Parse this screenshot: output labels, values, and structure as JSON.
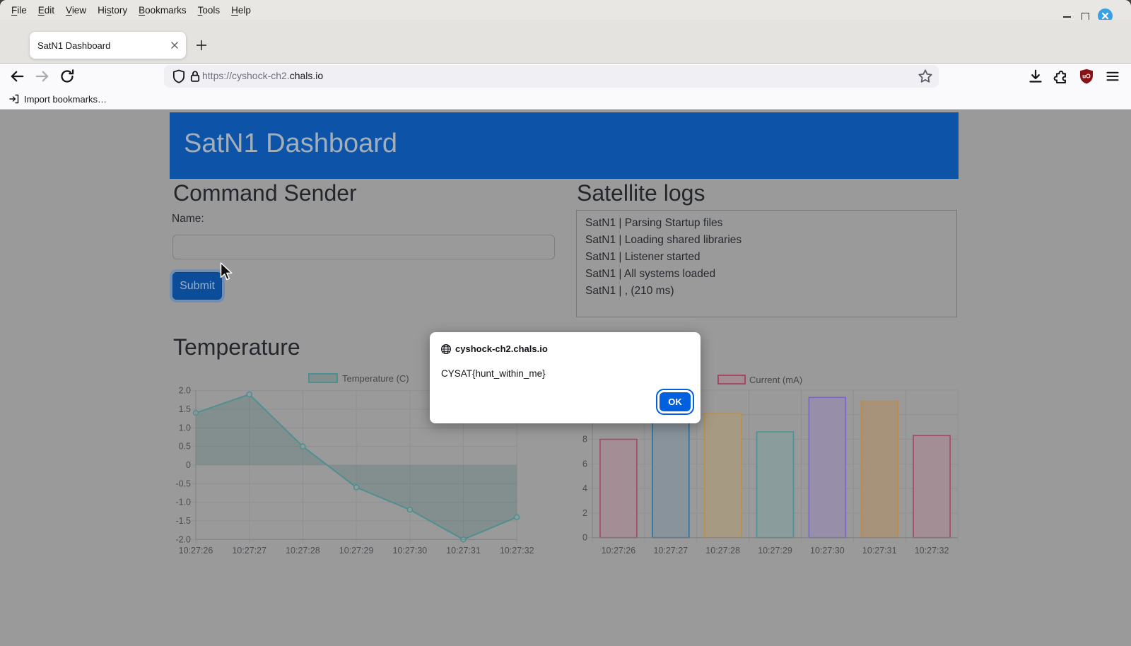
{
  "window": {
    "menu_items": [
      {
        "label": "File",
        "accesskey_index": 0
      },
      {
        "label": "Edit",
        "accesskey_index": 0
      },
      {
        "label": "View",
        "accesskey_index": 0
      },
      {
        "label": "History",
        "accesskey_index": 2
      },
      {
        "label": "Bookmarks",
        "accesskey_index": 0
      },
      {
        "label": "Tools",
        "accesskey_index": 0
      },
      {
        "label": "Help",
        "accesskey_index": 0
      }
    ]
  },
  "tabs": {
    "active_tab_title": "SatN1 Dashboard"
  },
  "navigation": {
    "url_prefix": "https://cyshock-ch2.",
    "url_domain": "chals.io"
  },
  "bookmarks_bar": {
    "import_label": "Import bookmarks…"
  },
  "page": {
    "header_title": "SatN1 Dashboard",
    "command_sender": {
      "heading": "Command Sender",
      "name_label": "Name:",
      "input_value": "",
      "submit_label": "Submit"
    },
    "satellite_logs": {
      "heading": "Satellite logs",
      "lines": [
        "SatN1 | Parsing Startup files",
        "SatN1 | Loading shared libraries",
        "SatN1 | Listener started",
        "SatN1 | All systems loaded",
        "SatN1 | , (210 ms)"
      ]
    }
  },
  "dialog": {
    "origin": "cyshock-ch2.chals.io",
    "message": "CYSAT{hunt_within_me}",
    "ok_label": "OK"
  },
  "chart_data": [
    {
      "type": "line",
      "title": "Temperature",
      "legend": "Temperature (C)",
      "legend_position": "top",
      "grid": true,
      "x_labels": [
        "10:27:26",
        "10:27:27",
        "10:27:28",
        "10:27:29",
        "10:27:30",
        "10:27:31",
        "10:27:32"
      ],
      "values": [
        1.4,
        1.9,
        0.5,
        -0.6,
        -1.2,
        -2.0,
        -1.4
      ],
      "ylim": [
        -2.0,
        2.0
      ],
      "ytick_step": 0.5,
      "line_color": "#4f8f90",
      "fill_color": "rgba(62,106,107,0.25)",
      "point_fill": "#8f9d9d"
    },
    {
      "type": "bar",
      "title": "",
      "legend": "Current (mA)",
      "legend_position": "top",
      "grid": true,
      "x_labels": [
        "10:27:26",
        "10:27:27",
        "10:27:28",
        "10:27:29",
        "10:27:30",
        "10:27:31",
        "10:27:32"
      ],
      "values": [
        8.0,
        10.8,
        10.1,
        8.6,
        11.4,
        11.1,
        8.3
      ],
      "ylim": [
        0,
        12
      ],
      "ytick_step": 2,
      "legend_swatch": {
        "border": "#a04b61",
        "fill": "#a28e94"
      },
      "bar_colors": [
        {
          "border": "#a04b61",
          "fill": "#a28e94"
        },
        {
          "border": "#2f6e99",
          "fill": "#88939c"
        },
        {
          "border": "#b8924c",
          "fill": "#a69a82"
        },
        {
          "border": "#4f9192",
          "fill": "#8b9c9c"
        },
        {
          "border": "#7a68c0",
          "fill": "#978fa9"
        },
        {
          "border": "#bd8b4e",
          "fill": "#a79379"
        },
        {
          "border": "#a04b61",
          "fill": "#a28e94"
        }
      ]
    }
  ],
  "colors": {
    "content_dim_bg": "#9a9a9b",
    "header_bg": "#0d53a7",
    "header_text": "#a2aeba",
    "accent_blue": "#0060df",
    "submit_bg": "#0b4d99",
    "close_button_blue": "#35a2e8",
    "ublock_red": "#8a1216",
    "chart_grid": "#8e9092",
    "chart_tick_text": "#4b4e51"
  }
}
